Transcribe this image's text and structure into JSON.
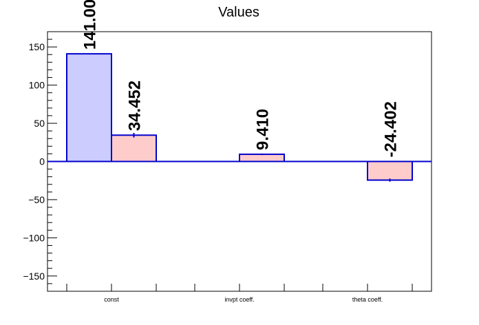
{
  "chart_data": {
    "type": "bar",
    "title": "Values",
    "xlabel": "",
    "ylabel": "",
    "ylim": [
      -170,
      170
    ],
    "yticks": [
      -150,
      -100,
      -50,
      0,
      50,
      100,
      150
    ],
    "ytick_labels": [
      "−150",
      "−100",
      "−50",
      "0",
      "50",
      "100",
      "150"
    ],
    "categories": [
      "const",
      "invpt coeff.",
      "theta coeff."
    ],
    "bars": [
      {
        "category": "const",
        "slot": "a",
        "value": 141.0,
        "label": "141.00",
        "fill": "#ccccff",
        "error": 0
      },
      {
        "category": "const",
        "slot": "b",
        "value": 34.452,
        "label": "34.452",
        "fill": "#ffcccc",
        "error": 3
      },
      {
        "category": "invpt coeff.",
        "slot": "b",
        "value": 9.41,
        "label": "9.410",
        "fill": "#ffcccc",
        "error": 1
      },
      {
        "category": "theta coeff.",
        "slot": "b",
        "value": -24.402,
        "label": "-24.402",
        "fill": "#ffcccc",
        "error": 2
      }
    ],
    "grid": false,
    "legend": "none",
    "colors": {
      "outline": "#0000cc",
      "zero_line": "#0000cc",
      "axis": "#000000"
    }
  }
}
